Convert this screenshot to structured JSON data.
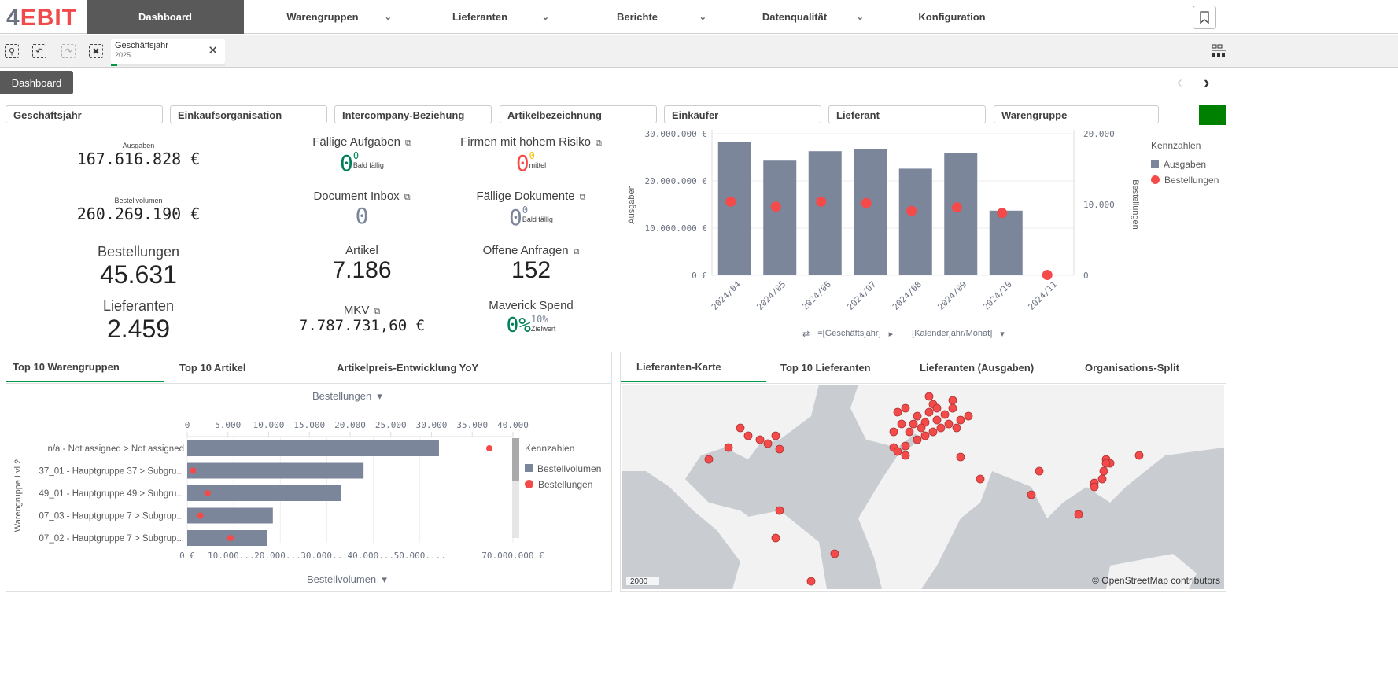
{
  "nav": {
    "logo_a": "4",
    "logo_b": "EBIT",
    "items": [
      {
        "label": "Dashboard",
        "active": true,
        "dropdown": false
      },
      {
        "label": "Warengruppen",
        "dropdown": true
      },
      {
        "label": "Lieferanten",
        "dropdown": true
      },
      {
        "label": "Berichte",
        "dropdown": true
      },
      {
        "label": "Datenqualität",
        "dropdown": true
      },
      {
        "label": "Konfiguration",
        "dropdown": false
      }
    ]
  },
  "toolbar": {
    "selection": {
      "field": "Geschäftsjahr",
      "value": "2025"
    }
  },
  "sheet": {
    "tab": "Dashboard"
  },
  "filters": [
    "Geschäftsjahr",
    "Einkaufsorganisation",
    "Intercompany-Beziehung",
    "Artikelbezeichnung",
    "Einkäufer",
    "Lieferant",
    "Warengruppe"
  ],
  "kpis": {
    "ausgaben": {
      "label": "Ausgaben",
      "value": "167.616.828 €"
    },
    "bestellvolumen": {
      "label": "Bestellvolumen",
      "value": "260.269.190 €"
    },
    "bestellungen": {
      "label": "Bestellungen",
      "value": "45.631"
    },
    "lieferanten": {
      "label": "Lieferanten",
      "value": "2.459"
    },
    "faellige_aufgaben": {
      "label": "Fällige Aufgaben",
      "value": "0",
      "sup": "0",
      "sub": "Bald fällig"
    },
    "document_inbox": {
      "label": "Document Inbox",
      "value": "0"
    },
    "artikel": {
      "label": "Artikel",
      "value": "7.186"
    },
    "mkv": {
      "label": "MKV",
      "value": "7.787.731,60 €"
    },
    "firmen_risiko": {
      "label": "Firmen mit hohem Risiko",
      "value": "0",
      "sup": "0",
      "sub": "mittel"
    },
    "faellige_dokumente": {
      "label": "Fällige Dokumente",
      "value": "0",
      "sup": "0",
      "sub": "Bald fällig"
    },
    "offene_anfragen": {
      "label": "Offene Anfragen",
      "value": "152"
    },
    "maverick": {
      "label": "Maverick Spend",
      "value": "0%",
      "sup": "10%",
      "sub": "Zielwert"
    }
  },
  "colors": {
    "bar": "#7b869b",
    "dot": "#f54a4a",
    "accent": "#009845",
    "green": "#00805a",
    "red": "#f54a4a",
    "yellow": "#ffc000"
  },
  "chart_data": [
    {
      "type": "bar",
      "title": "",
      "categories": [
        "2024/04",
        "2024/05",
        "2024/06",
        "2024/07",
        "2024/08",
        "2024/09",
        "2024/10",
        "2024/11"
      ],
      "series": [
        {
          "name": "Ausgaben",
          "axis": "left",
          "type": "bar",
          "values": [
            28200000,
            24300000,
            26300000,
            26700000,
            22600000,
            26000000,
            13700000,
            50000
          ]
        },
        {
          "name": "Bestellungen",
          "axis": "right",
          "type": "scatter",
          "values": [
            10400,
            9700,
            10400,
            10200,
            9100,
            9600,
            8800,
            50
          ]
        }
      ],
      "ylabel": "Ausgaben",
      "y2label": "Bestellungen",
      "ylim": [
        0,
        30000000
      ],
      "y2lim": [
        0,
        20000
      ],
      "yticks": [
        "0 €",
        "10.000.000 €",
        "20.000.000 €",
        "30.000.000 €"
      ],
      "y2ticks": [
        "0",
        "10.000",
        "20.000"
      ],
      "legend_title": "Kennzahlen",
      "legend": "right",
      "grid": true,
      "dims": [
        "=[Geschäftsjahr]",
        "[Kalenderjahr/Monat]"
      ]
    },
    {
      "type": "bar",
      "orientation": "horizontal",
      "categories": [
        "n/a - Not assigned > Not assigned",
        "37_01 - Hauptgruppe 37 > Subgru...",
        "49_01 - Hauptgruppe 49 > Subgru...",
        "07_03 - Hauptgruppe 7 > Subgrup...",
        "07_02 - Hauptgruppe 7 > Subgrup..."
      ],
      "series": [
        {
          "name": "Bestellvolumen",
          "axis": "bottom",
          "type": "bar",
          "values": [
            54100000,
            37900000,
            33100000,
            18400000,
            17200000
          ]
        },
        {
          "name": "Bestellungen",
          "axis": "top",
          "type": "scatter",
          "values": [
            37100,
            700,
            2500,
            1600,
            5300
          ]
        }
      ],
      "xlim_top": [
        0,
        40000
      ],
      "xlim_bottom": [
        0,
        70000000
      ],
      "top_ticks": [
        "0",
        "5.000",
        "10.000",
        "15.000",
        "20.000",
        "25.000",
        "30.000",
        "35.000",
        "40.000"
      ],
      "bottom_ticks": [
        "0 €",
        "10.000....",
        "20.000....",
        "30.000....",
        "40.000....",
        "50.000....",
        "70.000.000 €"
      ],
      "top_label": "Bestellungen",
      "bottom_label": "Bestellvolumen",
      "ylabel": "Warengruppe Lvl 2",
      "legend_title": "Kennzahlen",
      "legend": "right",
      "grid": true
    }
  ],
  "left_tabs": [
    "Top 10 Warengruppen",
    "Top 10 Artikel",
    "Artikelpreis-Entwicklung YoY"
  ],
  "right_tabs": [
    "Lieferanten-Karte",
    "Top 10 Lieferanten",
    "Lieferanten (Ausgaben)",
    "Organisations-Split"
  ],
  "map": {
    "scale": "2000",
    "attribution": "© OpenStreetMap contributors"
  }
}
